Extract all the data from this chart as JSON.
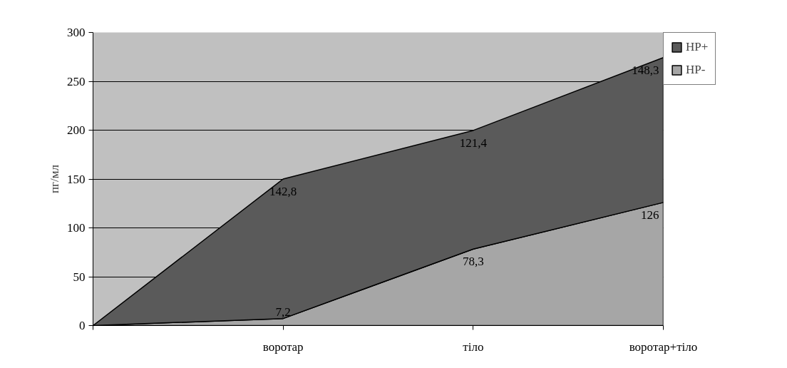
{
  "chart_data": {
    "type": "area",
    "stacked": true,
    "ylabel": "пг/мл",
    "categories": [
      null,
      "воротар",
      "тіло",
      "воротар+тіло"
    ],
    "series": [
      {
        "name": "HP-",
        "color": "#a6a6a6",
        "values": [
          0,
          7.2,
          78.3,
          126
        ],
        "value_labels": [
          null,
          "7,2",
          "78,3",
          "126"
        ]
      },
      {
        "name": "HP+",
        "color": "#5a5a5a",
        "values": [
          0,
          142.8,
          121.4,
          148.3
        ],
        "value_labels": [
          null,
          "142,8",
          "121,4",
          "148,3"
        ]
      }
    ],
    "ylim": [
      0,
      300
    ],
    "yticks": [
      0,
      50,
      100,
      150,
      200,
      250,
      300
    ],
    "grid": "y",
    "legend": "top right"
  }
}
